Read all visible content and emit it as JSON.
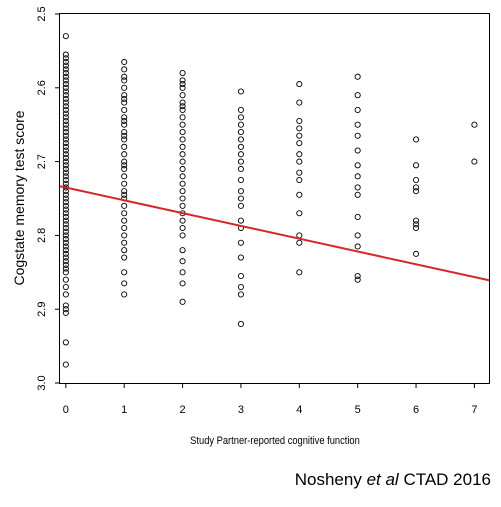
{
  "chart_data": {
    "type": "scatter",
    "title": "",
    "xlabel": "Study Partner-reported cognitive function",
    "ylabel": "Cogstate memory test score",
    "xlim": [
      -0.1,
      7.25
    ],
    "ylim": [
      2.5,
      3.0
    ],
    "y_reversed": true,
    "xticks": [
      "0",
      "1",
      "2",
      "3",
      "4",
      "5",
      "6",
      "7"
    ],
    "yticks": [
      "2.5",
      "2.6",
      "2.7",
      "2.8",
      "2.9",
      "3.0"
    ],
    "grid": false,
    "legend": "none",
    "series": [
      {
        "marker": "open-circle",
        "color": "#000000",
        "points": [
          [
            0,
            2.53
          ],
          [
            0,
            2.555
          ],
          [
            0,
            2.56
          ],
          [
            0,
            2.565
          ],
          [
            0,
            2.57
          ],
          [
            0,
            2.575
          ],
          [
            0,
            2.58
          ],
          [
            0,
            2.585
          ],
          [
            0,
            2.59
          ],
          [
            0,
            2.595
          ],
          [
            0,
            2.6
          ],
          [
            0,
            2.605
          ],
          [
            0,
            2.61
          ],
          [
            0,
            2.615
          ],
          [
            0,
            2.62
          ],
          [
            0,
            2.625
          ],
          [
            0,
            2.63
          ],
          [
            0,
            2.635
          ],
          [
            0,
            2.64
          ],
          [
            0,
            2.645
          ],
          [
            0,
            2.65
          ],
          [
            0,
            2.655
          ],
          [
            0,
            2.66
          ],
          [
            0,
            2.665
          ],
          [
            0,
            2.67
          ],
          [
            0,
            2.675
          ],
          [
            0,
            2.68
          ],
          [
            0,
            2.685
          ],
          [
            0,
            2.69
          ],
          [
            0,
            2.695
          ],
          [
            0,
            2.7
          ],
          [
            0,
            2.705
          ],
          [
            0,
            2.71
          ],
          [
            0,
            2.715
          ],
          [
            0,
            2.72
          ],
          [
            0,
            2.725
          ],
          [
            0,
            2.73
          ],
          [
            0,
            2.735
          ],
          [
            0,
            2.74
          ],
          [
            0,
            2.745
          ],
          [
            0,
            2.75
          ],
          [
            0,
            2.755
          ],
          [
            0,
            2.76
          ],
          [
            0,
            2.765
          ],
          [
            0,
            2.77
          ],
          [
            0,
            2.775
          ],
          [
            0,
            2.78
          ],
          [
            0,
            2.785
          ],
          [
            0,
            2.79
          ],
          [
            0,
            2.795
          ],
          [
            0,
            2.8
          ],
          [
            0,
            2.805
          ],
          [
            0,
            2.81
          ],
          [
            0,
            2.815
          ],
          [
            0,
            2.82
          ],
          [
            0,
            2.825
          ],
          [
            0,
            2.83
          ],
          [
            0,
            2.835
          ],
          [
            0,
            2.84
          ],
          [
            0,
            2.845
          ],
          [
            0,
            2.85
          ],
          [
            0,
            2.86
          ],
          [
            0,
            2.87
          ],
          [
            0,
            2.88
          ],
          [
            0,
            2.895
          ],
          [
            0,
            2.9
          ],
          [
            0,
            2.905
          ],
          [
            0,
            2.945
          ],
          [
            0,
            2.975
          ],
          [
            1,
            2.565
          ],
          [
            1,
            2.575
          ],
          [
            1,
            2.585
          ],
          [
            1,
            2.59
          ],
          [
            1,
            2.6
          ],
          [
            1,
            2.61
          ],
          [
            1,
            2.615
          ],
          [
            1,
            2.62
          ],
          [
            1,
            2.63
          ],
          [
            1,
            2.64
          ],
          [
            1,
            2.645
          ],
          [
            1,
            2.65
          ],
          [
            1,
            2.66
          ],
          [
            1,
            2.665
          ],
          [
            1,
            2.67
          ],
          [
            1,
            2.68
          ],
          [
            1,
            2.69
          ],
          [
            1,
            2.7
          ],
          [
            1,
            2.705
          ],
          [
            1,
            2.71
          ],
          [
            1,
            2.72
          ],
          [
            1,
            2.73
          ],
          [
            1,
            2.74
          ],
          [
            1,
            2.745
          ],
          [
            1,
            2.75
          ],
          [
            1,
            2.76
          ],
          [
            1,
            2.77
          ],
          [
            1,
            2.78
          ],
          [
            1,
            2.79
          ],
          [
            1,
            2.8
          ],
          [
            1,
            2.81
          ],
          [
            1,
            2.82
          ],
          [
            1,
            2.83
          ],
          [
            1,
            2.85
          ],
          [
            1,
            2.865
          ],
          [
            1,
            2.88
          ],
          [
            2,
            2.58
          ],
          [
            2,
            2.59
          ],
          [
            2,
            2.595
          ],
          [
            2,
            2.6
          ],
          [
            2,
            2.61
          ],
          [
            2,
            2.62
          ],
          [
            2,
            2.625
          ],
          [
            2,
            2.63
          ],
          [
            2,
            2.64
          ],
          [
            2,
            2.65
          ],
          [
            2,
            2.66
          ],
          [
            2,
            2.67
          ],
          [
            2,
            2.68
          ],
          [
            2,
            2.69
          ],
          [
            2,
            2.7
          ],
          [
            2,
            2.71
          ],
          [
            2,
            2.72
          ],
          [
            2,
            2.73
          ],
          [
            2,
            2.74
          ],
          [
            2,
            2.75
          ],
          [
            2,
            2.76
          ],
          [
            2,
            2.77
          ],
          [
            2,
            2.78
          ],
          [
            2,
            2.79
          ],
          [
            2,
            2.8
          ],
          [
            2,
            2.82
          ],
          [
            2,
            2.835
          ],
          [
            2,
            2.85
          ],
          [
            2,
            2.865
          ],
          [
            2,
            2.89
          ],
          [
            3,
            2.605
          ],
          [
            3,
            2.63
          ],
          [
            3,
            2.64
          ],
          [
            3,
            2.65
          ],
          [
            3,
            2.66
          ],
          [
            3,
            2.67
          ],
          [
            3,
            2.68
          ],
          [
            3,
            2.69
          ],
          [
            3,
            2.7
          ],
          [
            3,
            2.71
          ],
          [
            3,
            2.725
          ],
          [
            3,
            2.74
          ],
          [
            3,
            2.75
          ],
          [
            3,
            2.76
          ],
          [
            3,
            2.78
          ],
          [
            3,
            2.79
          ],
          [
            3,
            2.81
          ],
          [
            3,
            2.83
          ],
          [
            3,
            2.855
          ],
          [
            3,
            2.87
          ],
          [
            3,
            2.88
          ],
          [
            3,
            2.92
          ],
          [
            4,
            2.595
          ],
          [
            4,
            2.62
          ],
          [
            4,
            2.645
          ],
          [
            4,
            2.655
          ],
          [
            4,
            2.665
          ],
          [
            4,
            2.675
          ],
          [
            4,
            2.69
          ],
          [
            4,
            2.7
          ],
          [
            4,
            2.715
          ],
          [
            4,
            2.725
          ],
          [
            4,
            2.745
          ],
          [
            4,
            2.77
          ],
          [
            4,
            2.8
          ],
          [
            4,
            2.81
          ],
          [
            4,
            2.85
          ],
          [
            5,
            2.585
          ],
          [
            5,
            2.61
          ],
          [
            5,
            2.63
          ],
          [
            5,
            2.65
          ],
          [
            5,
            2.665
          ],
          [
            5,
            2.685
          ],
          [
            5,
            2.705
          ],
          [
            5,
            2.72
          ],
          [
            5,
            2.735
          ],
          [
            5,
            2.745
          ],
          [
            5,
            2.775
          ],
          [
            5,
            2.8
          ],
          [
            5,
            2.815
          ],
          [
            5,
            2.855
          ],
          [
            5,
            2.86
          ],
          [
            6,
            2.67
          ],
          [
            6,
            2.705
          ],
          [
            6,
            2.725
          ],
          [
            6,
            2.735
          ],
          [
            6,
            2.74
          ],
          [
            6,
            2.78
          ],
          [
            6,
            2.785
          ],
          [
            6,
            2.79
          ],
          [
            6,
            2.825
          ],
          [
            7,
            2.65
          ],
          [
            7,
            2.7
          ]
        ]
      }
    ],
    "regression_line": {
      "color": "#d62728",
      "x": [
        -0.1,
        7.25
      ],
      "y": [
        2.7334,
        2.8608
      ]
    }
  },
  "citation": {
    "author": "Nosheny ",
    "etal": "et al",
    "rest": " CTAD 2016"
  }
}
